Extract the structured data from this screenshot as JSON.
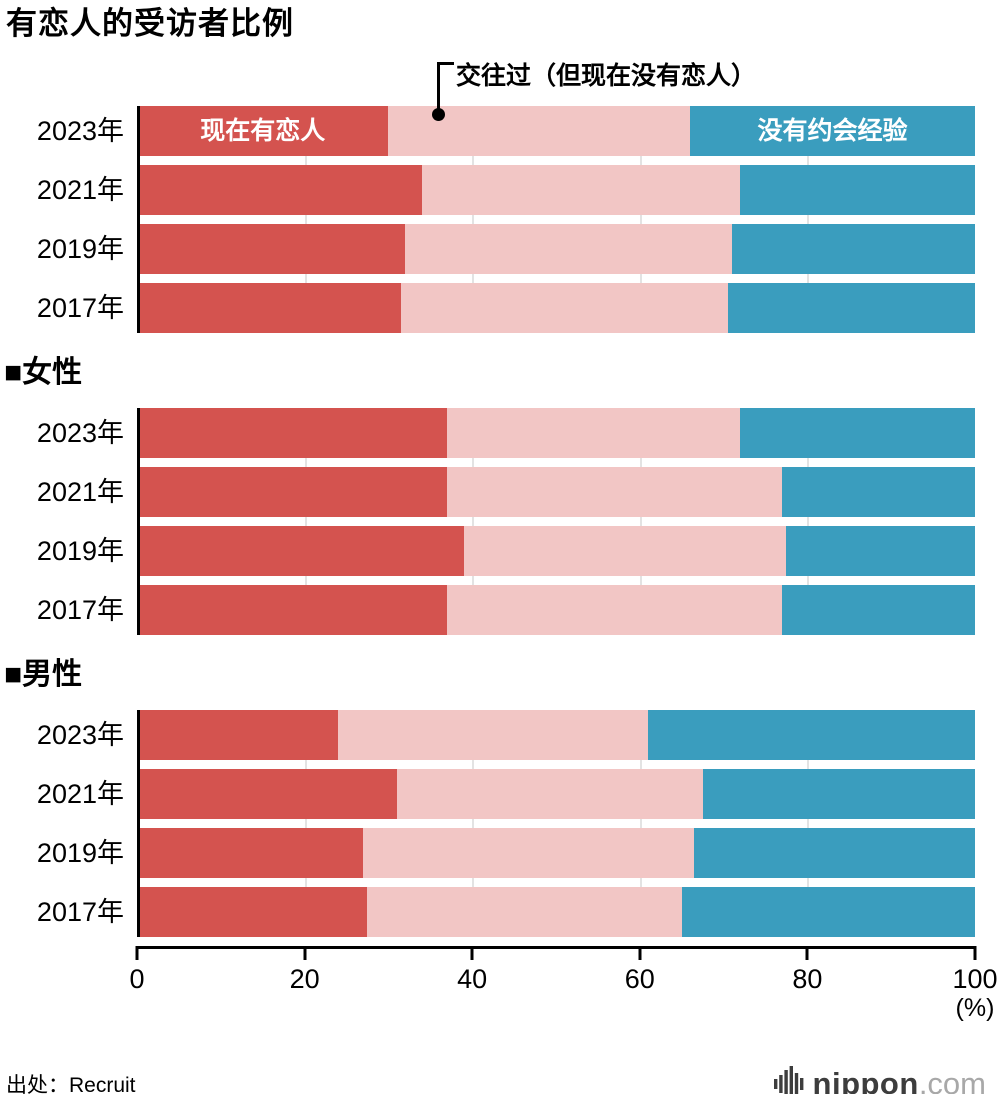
{
  "title": "有恋人的受访者比例",
  "annotation": {
    "label": "交往过（但现在没有恋人）"
  },
  "legend": {
    "red": "现在有恋人",
    "blue": "没有约会经验"
  },
  "axis": {
    "ticks": [
      0,
      20,
      40,
      60,
      80,
      100
    ],
    "max": 100,
    "unit": "(%)"
  },
  "source": "出处：Recruit",
  "logo": {
    "name": "nippon",
    "tld": ".com"
  },
  "colors": {
    "red": "#d4534f",
    "pink": "#f2c6c5",
    "blue": "#3a9dbe",
    "grid": "#e3e3e3",
    "axis": "#000000"
  },
  "chart_data": {
    "type": "bar",
    "orientation": "horizontal",
    "stacked": true,
    "title": "有恋人的受访者比例",
    "unit": "%",
    "xlim": [
      0,
      100
    ],
    "xticks": [
      0,
      20,
      40,
      60,
      80,
      100
    ],
    "grid": true,
    "series_labels": [
      "现在有恋人",
      "交往过（但现在没有恋人）",
      "没有约会经验"
    ],
    "series_keys": [
      "current-partner",
      "dated-but-single",
      "no-dating-experience"
    ],
    "series_colors": [
      "#d4534f",
      "#f2c6c5",
      "#3a9dbe"
    ],
    "groups": [
      {
        "label": "",
        "categories": [
          "2023年",
          "2021年",
          "2019年",
          "2017年"
        ],
        "rows": [
          [
            30,
            36,
            34
          ],
          [
            34,
            38,
            28
          ],
          [
            32,
            39,
            29
          ],
          [
            31.5,
            39,
            29.5
          ]
        ]
      },
      {
        "label": "■女性",
        "categories": [
          "2023年",
          "2021年",
          "2019年",
          "2017年"
        ],
        "rows": [
          [
            37,
            35,
            28
          ],
          [
            37,
            40,
            23
          ],
          [
            39,
            38.5,
            22.5
          ],
          [
            37,
            40,
            23
          ]
        ]
      },
      {
        "label": "■男性",
        "categories": [
          "2023年",
          "2021年",
          "2019年",
          "2017年"
        ],
        "rows": [
          [
            24,
            37,
            39
          ],
          [
            31,
            36.5,
            32.5
          ],
          [
            27,
            39.5,
            33.5
          ],
          [
            27.5,
            37.5,
            35
          ]
        ]
      }
    ]
  }
}
